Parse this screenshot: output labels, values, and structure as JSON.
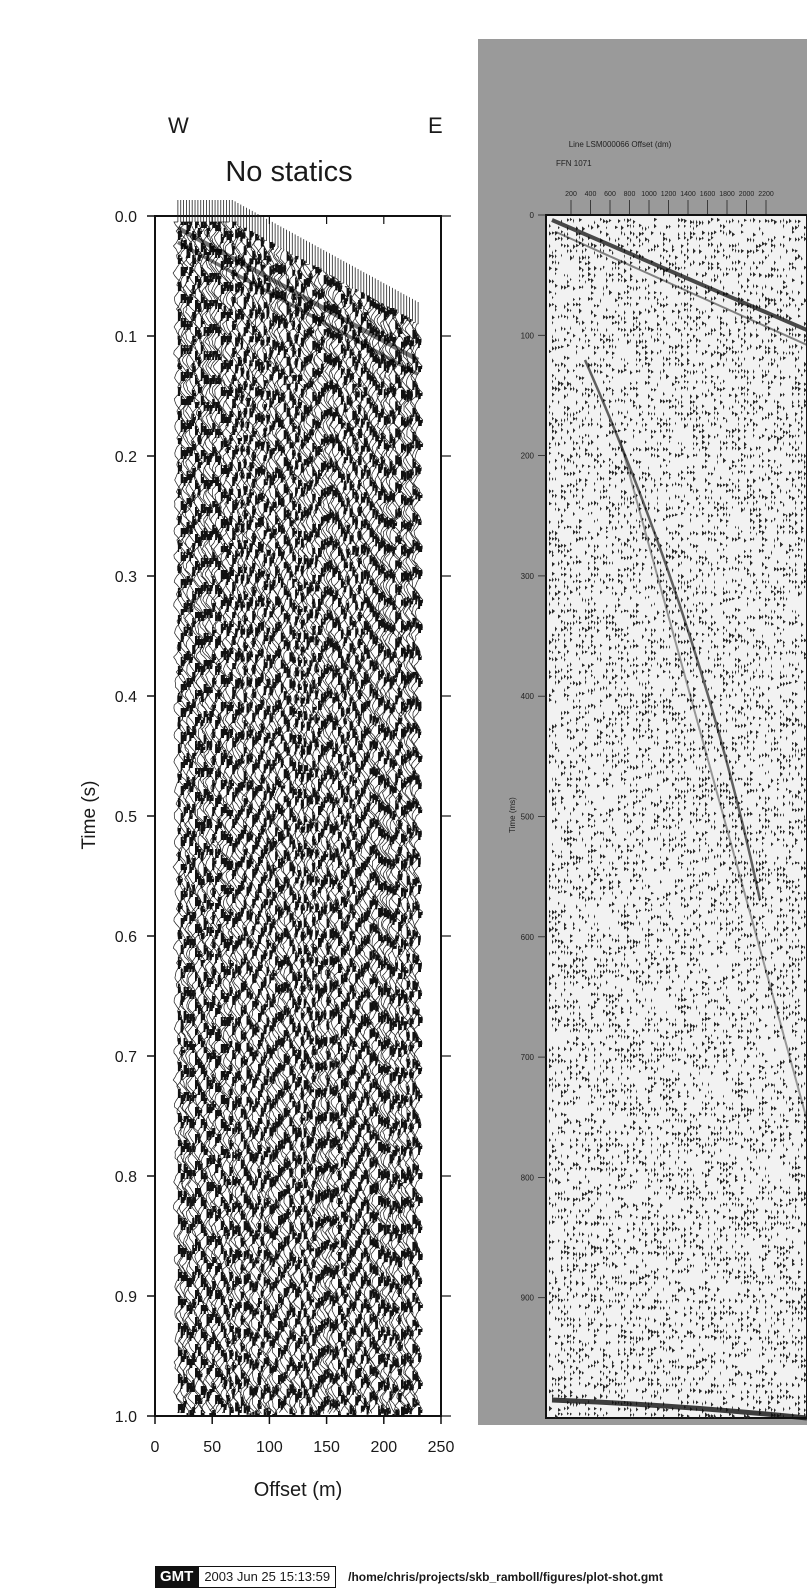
{
  "chart_data": [
    {
      "type": "seismic-wiggle",
      "title": "No statics",
      "direction_labels": {
        "left": "W",
        "right": "E"
      },
      "xlabel": "Offset (m)",
      "ylabel": "Time (s)",
      "xlim": [
        0,
        250
      ],
      "ylim": [
        0.0,
        1.0
      ],
      "y_inverted": true,
      "x_ticks": [
        0,
        50,
        100,
        150,
        200,
        250
      ],
      "y_ticks": [
        0.0,
        0.1,
        0.2,
        0.3,
        0.4,
        0.5,
        0.6,
        0.7,
        0.8,
        0.9,
        1.0
      ],
      "x_tick_labels": [
        "0",
        "50",
        "100",
        "150",
        "200",
        "250"
      ],
      "y_tick_labels": [
        "0.0",
        "0.1",
        "0.2",
        "0.3",
        "0.4",
        "0.5",
        "0.6",
        "0.7",
        "0.8",
        "0.9",
        "1.0"
      ],
      "trace_offset_range": [
        20,
        230
      ],
      "trace_spacing": 2.5,
      "first_arrival": {
        "offset": [
          20,
          230
        ],
        "time": [
          0.01,
          0.12
        ]
      },
      "surface_wave": {
        "offset": [
          20,
          230
        ],
        "time": [
          0.01,
          0.12
        ]
      }
    },
    {
      "type": "seismic-variable-area",
      "header_title": "Line LSM000066 Offset (dm)",
      "ffn_label": "FFN 1071",
      "ylabel": "Time (ms)",
      "x_ticks": [
        200,
        400,
        600,
        800,
        1000,
        1200,
        1400,
        1600,
        1800,
        2000,
        2200
      ],
      "x_tick_labels": [
        "200",
        "400",
        "600",
        "800",
        "1000",
        "1200",
        "1400",
        "1600",
        "1800",
        "2000",
        "2200"
      ],
      "y_ticks": [
        0,
        100,
        200,
        300,
        400,
        500,
        600,
        700,
        800,
        900
      ],
      "y_tick_labels": [
        "0",
        "100",
        "200",
        "300",
        "400",
        "500",
        "600",
        "700",
        "800",
        "900"
      ],
      "ylim": [
        0,
        1000
      ],
      "y_inverted": true,
      "panel_color": "#9a9a9a"
    }
  ],
  "footer": {
    "logo": "GMT",
    "timestamp": "2003 Jun 25 15:13:59",
    "path": "/home/chris/projects/skb_ramboll/figures/plot-shot.gmt"
  }
}
